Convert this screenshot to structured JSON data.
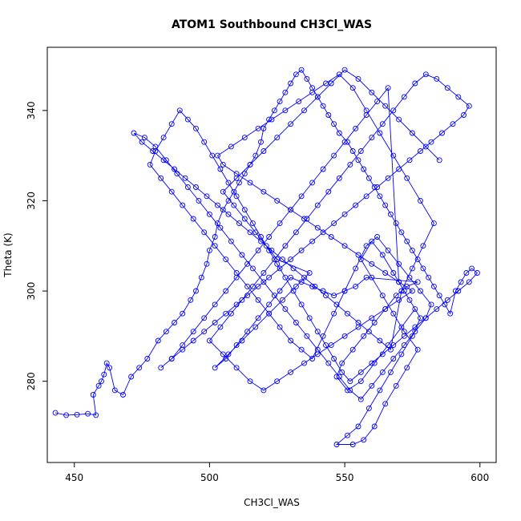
{
  "chart_data": {
    "type": "scatter",
    "title": "ATOM1 Southbound CH3Cl_WAS",
    "xlabel": "CH3Cl_WAS",
    "ylabel": "Theta (K)",
    "xlim": [
      440,
      606
    ],
    "ylim": [
      262,
      354
    ],
    "xticks": [
      450,
      500,
      550,
      600
    ],
    "yticks": [
      280,
      300,
      320,
      340
    ],
    "series_color": "#0000ff",
    "marker": "open-circle",
    "connected": true,
    "grid": false,
    "legend": "none",
    "x": [
      443,
      447,
      451,
      455,
      458,
      457,
      459,
      460,
      461,
      462,
      463,
      465,
      468,
      471,
      474,
      477,
      481,
      484,
      487,
      490,
      493,
      495,
      497,
      499,
      500,
      502,
      503,
      505,
      507,
      509,
      511,
      513,
      515,
      517,
      519,
      520,
      522,
      524,
      526,
      528,
      530,
      532,
      534,
      536,
      538,
      540,
      542,
      544,
      546,
      548,
      551,
      553,
      555,
      557,
      559,
      561,
      563,
      565,
      567,
      569,
      571,
      573,
      575,
      577,
      579,
      581,
      583,
      585,
      587,
      589,
      591,
      593,
      595,
      597,
      599,
      596,
      592,
      588,
      584,
      580,
      576,
      572,
      568,
      564,
      560,
      556,
      552,
      549,
      546,
      543,
      540,
      537,
      534,
      531,
      528,
      525,
      522,
      519,
      516,
      513,
      510,
      507,
      504,
      501,
      498,
      495,
      492,
      489,
      486,
      483,
      480,
      478,
      482,
      486,
      490,
      494,
      498,
      502,
      506,
      510,
      514,
      518,
      522,
      526,
      530,
      534,
      538,
      542,
      546,
      550,
      554,
      558,
      562,
      566,
      570,
      574,
      578,
      582,
      580,
      576,
      572,
      568,
      564,
      560,
      556,
      552,
      548,
      544,
      540,
      536,
      532,
      528,
      524,
      520,
      516,
      512,
      508,
      504,
      500,
      496,
      492,
      488,
      484,
      480,
      476,
      472,
      475,
      479,
      483,
      487,
      491,
      495,
      499,
      503,
      507,
      511,
      515,
      519,
      523,
      527,
      531,
      535,
      539,
      543,
      547,
      551,
      555,
      559,
      563,
      567,
      571,
      575,
      579,
      583,
      578,
      573,
      568,
      563,
      558,
      553,
      548,
      543,
      538,
      533,
      528,
      523,
      518,
      513,
      508,
      503,
      505,
      510,
      515,
      520,
      525,
      530,
      535,
      540,
      545,
      550,
      555,
      560,
      565,
      570,
      575,
      570,
      565,
      560,
      555,
      550,
      545,
      540,
      535,
      530,
      525,
      520,
      515,
      510,
      505,
      500,
      504,
      508,
      512,
      516,
      520,
      524,
      528,
      532,
      536,
      540,
      544,
      548,
      552,
      556,
      560,
      564,
      568,
      572,
      576,
      580,
      584,
      588,
      592,
      596,
      594,
      590,
      586,
      582,
      578,
      574,
      570,
      566,
      562,
      558,
      554,
      550,
      546,
      542,
      538,
      534,
      530,
      526,
      522,
      518,
      514,
      510,
      506,
      502,
      498,
      494,
      490,
      486,
      482,
      486,
      490,
      494,
      498,
      502,
      506,
      510,
      514,
      518,
      522,
      526,
      530,
      534,
      538,
      542,
      546,
      550,
      554,
      558,
      562,
      566,
      570,
      574,
      578,
      575,
      571,
      567,
      563,
      559,
      555,
      551,
      547,
      553,
      557,
      561,
      565,
      569,
      573,
      577,
      572,
      568,
      564,
      560,
      556,
      560,
      564,
      568,
      572,
      576,
      571,
      566,
      561,
      556,
      551,
      547,
      549,
      553,
      557,
      561,
      565,
      569,
      573,
      577,
      558,
      554,
      550,
      546,
      542,
      538,
      534,
      530,
      526,
      522,
      518,
      514,
      510,
      506,
      502,
      507,
      512,
      517,
      522,
      527,
      532,
      537,
      525,
      521,
      517,
      513,
      509,
      505,
      510,
      515,
      520,
      525,
      530,
      535,
      540,
      545,
      550,
      555,
      560,
      565,
      570,
      575,
      580,
      585
    ],
    "y": [
      273,
      272.5,
      272.6,
      272.8,
      272.5,
      277,
      279,
      280,
      281.5,
      284,
      283,
      278,
      277,
      281,
      283,
      285,
      289,
      291,
      293,
      295,
      298,
      300,
      303,
      306,
      309,
      312,
      315,
      318,
      320,
      322,
      324,
      326,
      328,
      330,
      333,
      336,
      338,
      340,
      342,
      344,
      346,
      348,
      349,
      347,
      345,
      343,
      341,
      339,
      337,
      335,
      333,
      331,
      329,
      327,
      325,
      323,
      321,
      319,
      317,
      315,
      313,
      311,
      309,
      307,
      305,
      303,
      301,
      299,
      297,
      295,
      300,
      302,
      304,
      305,
      304,
      302,
      300,
      298,
      296,
      294,
      292,
      290,
      288,
      286,
      284,
      282,
      280,
      282,
      285,
      288,
      291,
      294,
      297,
      300,
      303,
      306,
      309,
      312,
      315,
      318,
      321,
      324,
      327,
      330,
      333,
      336,
      338,
      340,
      337,
      334,
      331,
      328,
      325,
      322,
      319,
      316,
      313,
      310,
      307,
      304,
      301,
      298,
      295,
      292,
      289,
      287,
      285,
      290,
      295,
      300,
      305,
      310,
      312,
      309,
      306,
      303,
      300,
      297,
      294,
      291,
      288,
      285,
      282,
      279,
      276,
      278,
      281,
      284,
      287,
      290,
      293,
      296,
      299,
      302,
      305,
      308,
      311,
      314,
      317,
      320,
      323,
      326,
      329,
      332,
      334,
      335,
      333,
      331,
      329,
      327,
      325,
      323,
      321,
      319,
      317,
      315,
      313,
      311,
      309,
      307,
      305,
      303,
      301,
      299,
      297,
      295,
      293,
      291,
      289,
      287,
      300,
      305,
      310,
      315,
      320,
      325,
      330,
      335,
      340,
      345,
      348,
      346,
      344,
      342,
      340,
      338,
      336,
      334,
      332,
      330,
      328,
      326,
      324,
      322,
      320,
      318,
      316,
      314,
      312,
      310,
      308,
      306,
      304,
      302,
      300,
      298,
      296,
      294,
      292,
      290,
      288,
      286,
      284,
      282,
      280,
      278,
      280,
      283,
      286,
      289,
      292,
      295,
      298,
      301,
      304,
      307,
      310,
      313,
      316,
      319,
      322,
      325,
      328,
      331,
      334,
      337,
      340,
      343,
      346,
      348,
      347,
      345,
      343,
      341,
      339,
      337,
      335,
      333,
      331,
      329,
      327,
      325,
      323,
      321,
      319,
      317,
      315,
      313,
      311,
      309,
      307,
      305,
      303,
      301,
      299,
      297,
      295,
      293,
      291,
      289,
      287,
      285,
      283,
      285,
      288,
      291,
      294,
      297,
      300,
      303,
      306,
      309,
      312,
      315,
      318,
      321,
      324,
      327,
      330,
      333,
      336,
      339,
      342,
      345,
      302,
      298,
      294,
      290,
      286,
      282,
      278,
      274,
      270,
      268,
      266,
      266,
      267,
      270,
      275,
      279,
      283,
      287,
      291,
      295,
      299,
      303,
      307,
      311,
      308,
      304,
      300,
      296,
      292,
      288,
      284,
      280,
      278,
      281,
      284,
      287,
      290,
      293,
      296,
      299,
      301,
      302,
      303,
      301,
      300,
      299,
      300,
      301,
      302,
      303,
      300,
      297,
      294,
      291,
      288,
      285,
      283,
      286,
      289,
      292,
      295,
      298,
      301,
      304,
      307,
      310,
      313,
      316,
      319,
      322,
      325,
      328,
      331,
      334,
      337,
      340,
      343,
      346,
      349,
      347,
      344,
      341,
      338,
      335,
      332,
      329
    ]
  }
}
